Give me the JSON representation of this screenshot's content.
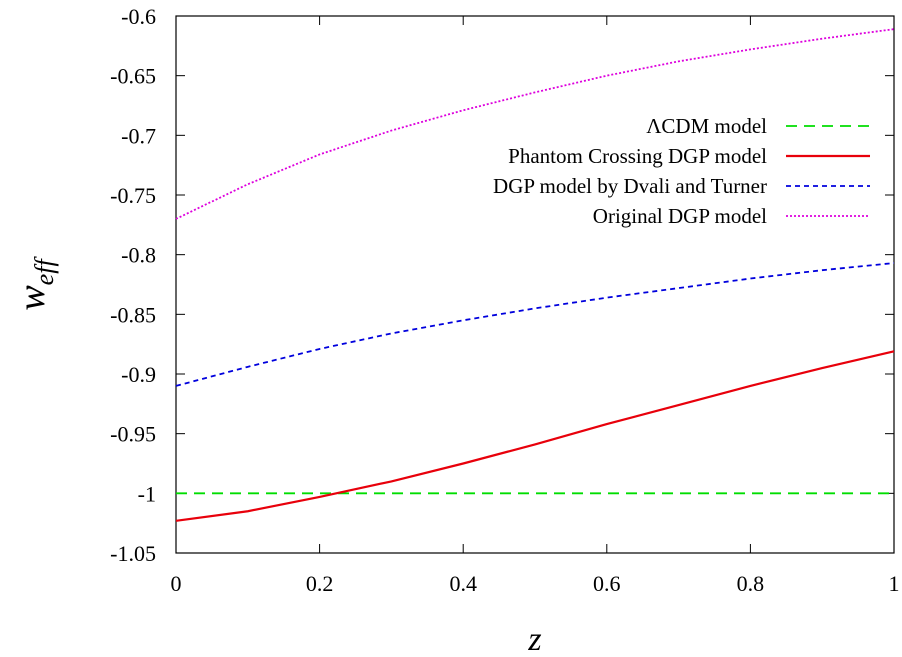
{
  "chart_data": {
    "type": "line",
    "xlabel": "z",
    "ylabel_main": "w",
    "ylabel_sub": "eff",
    "xlim": [
      0,
      1
    ],
    "ylim": [
      -1.05,
      -0.6
    ],
    "x_ticks": [
      0,
      0.2,
      0.4,
      0.6,
      0.8,
      1
    ],
    "x_tick_labels": [
      "0",
      "0.2",
      "0.4",
      "0.6",
      "0.8",
      "1"
    ],
    "y_ticks": [
      -1.05,
      -1,
      -0.95,
      -0.9,
      -0.85,
      -0.8,
      -0.75,
      -0.7,
      -0.65,
      -0.6
    ],
    "y_tick_labels": [
      "-1.05",
      "-1",
      "-0.95",
      "-0.9",
      "-0.85",
      "-0.8",
      "-0.75",
      "-0.7",
      "-0.65",
      "-0.6"
    ],
    "grid": false,
    "legend_position": "top-right",
    "x": [
      0,
      0.1,
      0.2,
      0.3,
      0.4,
      0.5,
      0.6,
      0.7,
      0.8,
      0.9,
      1.0
    ],
    "series": [
      {
        "name": "ΛCDM model",
        "color": "#00dd00",
        "dash": "long-dash",
        "values": [
          -1,
          -1,
          -1,
          -1,
          -1,
          -1,
          -1,
          -1,
          -1,
          -1,
          -1
        ]
      },
      {
        "name": "Phantom Crossing DGP model",
        "color": "#e8000b",
        "dash": "solid",
        "values": [
          -1.023,
          -1.015,
          -1.003,
          -0.99,
          -0.975,
          -0.959,
          -0.942,
          -0.926,
          -0.91,
          -0.895,
          -0.881
        ]
      },
      {
        "name": "DGP model by Dvali and Turner",
        "color": "#0000dd",
        "dash": "short-dash",
        "values": [
          -0.91,
          -0.894,
          -0.879,
          -0.866,
          -0.855,
          -0.845,
          -0.836,
          -0.828,
          -0.82,
          -0.813,
          -0.807
        ]
      },
      {
        "name": "Original DGP model",
        "color": "#dd00dd",
        "dash": "dotted",
        "values": [
          -0.77,
          -0.741,
          -0.716,
          -0.696,
          -0.679,
          -0.664,
          -0.65,
          -0.638,
          -0.628,
          -0.619,
          -0.611
        ]
      }
    ]
  }
}
